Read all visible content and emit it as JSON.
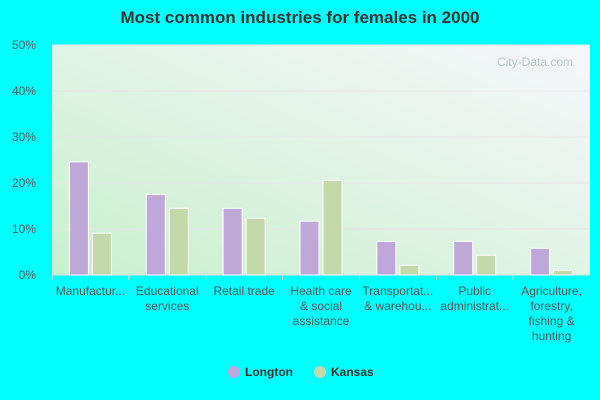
{
  "chart_data": {
    "type": "bar",
    "title": "Most common industries for females in 2000",
    "categories": [
      [
        "Manufactur..."
      ],
      [
        "Educational",
        "services"
      ],
      [
        "Retail trade"
      ],
      [
        "Health care",
        "& social",
        "assistance"
      ],
      [
        "Transportat...",
        "& warehou..."
      ],
      [
        "Public",
        "administrat..."
      ],
      [
        "Agriculture,",
        "forestry,",
        "fishing &",
        "hunting"
      ]
    ],
    "series": [
      {
        "name": "Longton",
        "color": "#bfa8d9",
        "values": [
          24.6,
          17.5,
          14.5,
          11.7,
          7.3,
          7.3,
          5.8
        ]
      },
      {
        "name": "Kansas",
        "color": "#c4d9a8",
        "values": [
          9.1,
          14.5,
          12.3,
          20.6,
          2.1,
          4.3,
          1.0
        ]
      }
    ],
    "ylim": [
      0,
      50
    ],
    "yticks": [
      "0%",
      "10%",
      "20%",
      "30%",
      "40%",
      "50%"
    ],
    "grid": true,
    "legend": "bottom",
    "watermark": "City-Data.com"
  }
}
